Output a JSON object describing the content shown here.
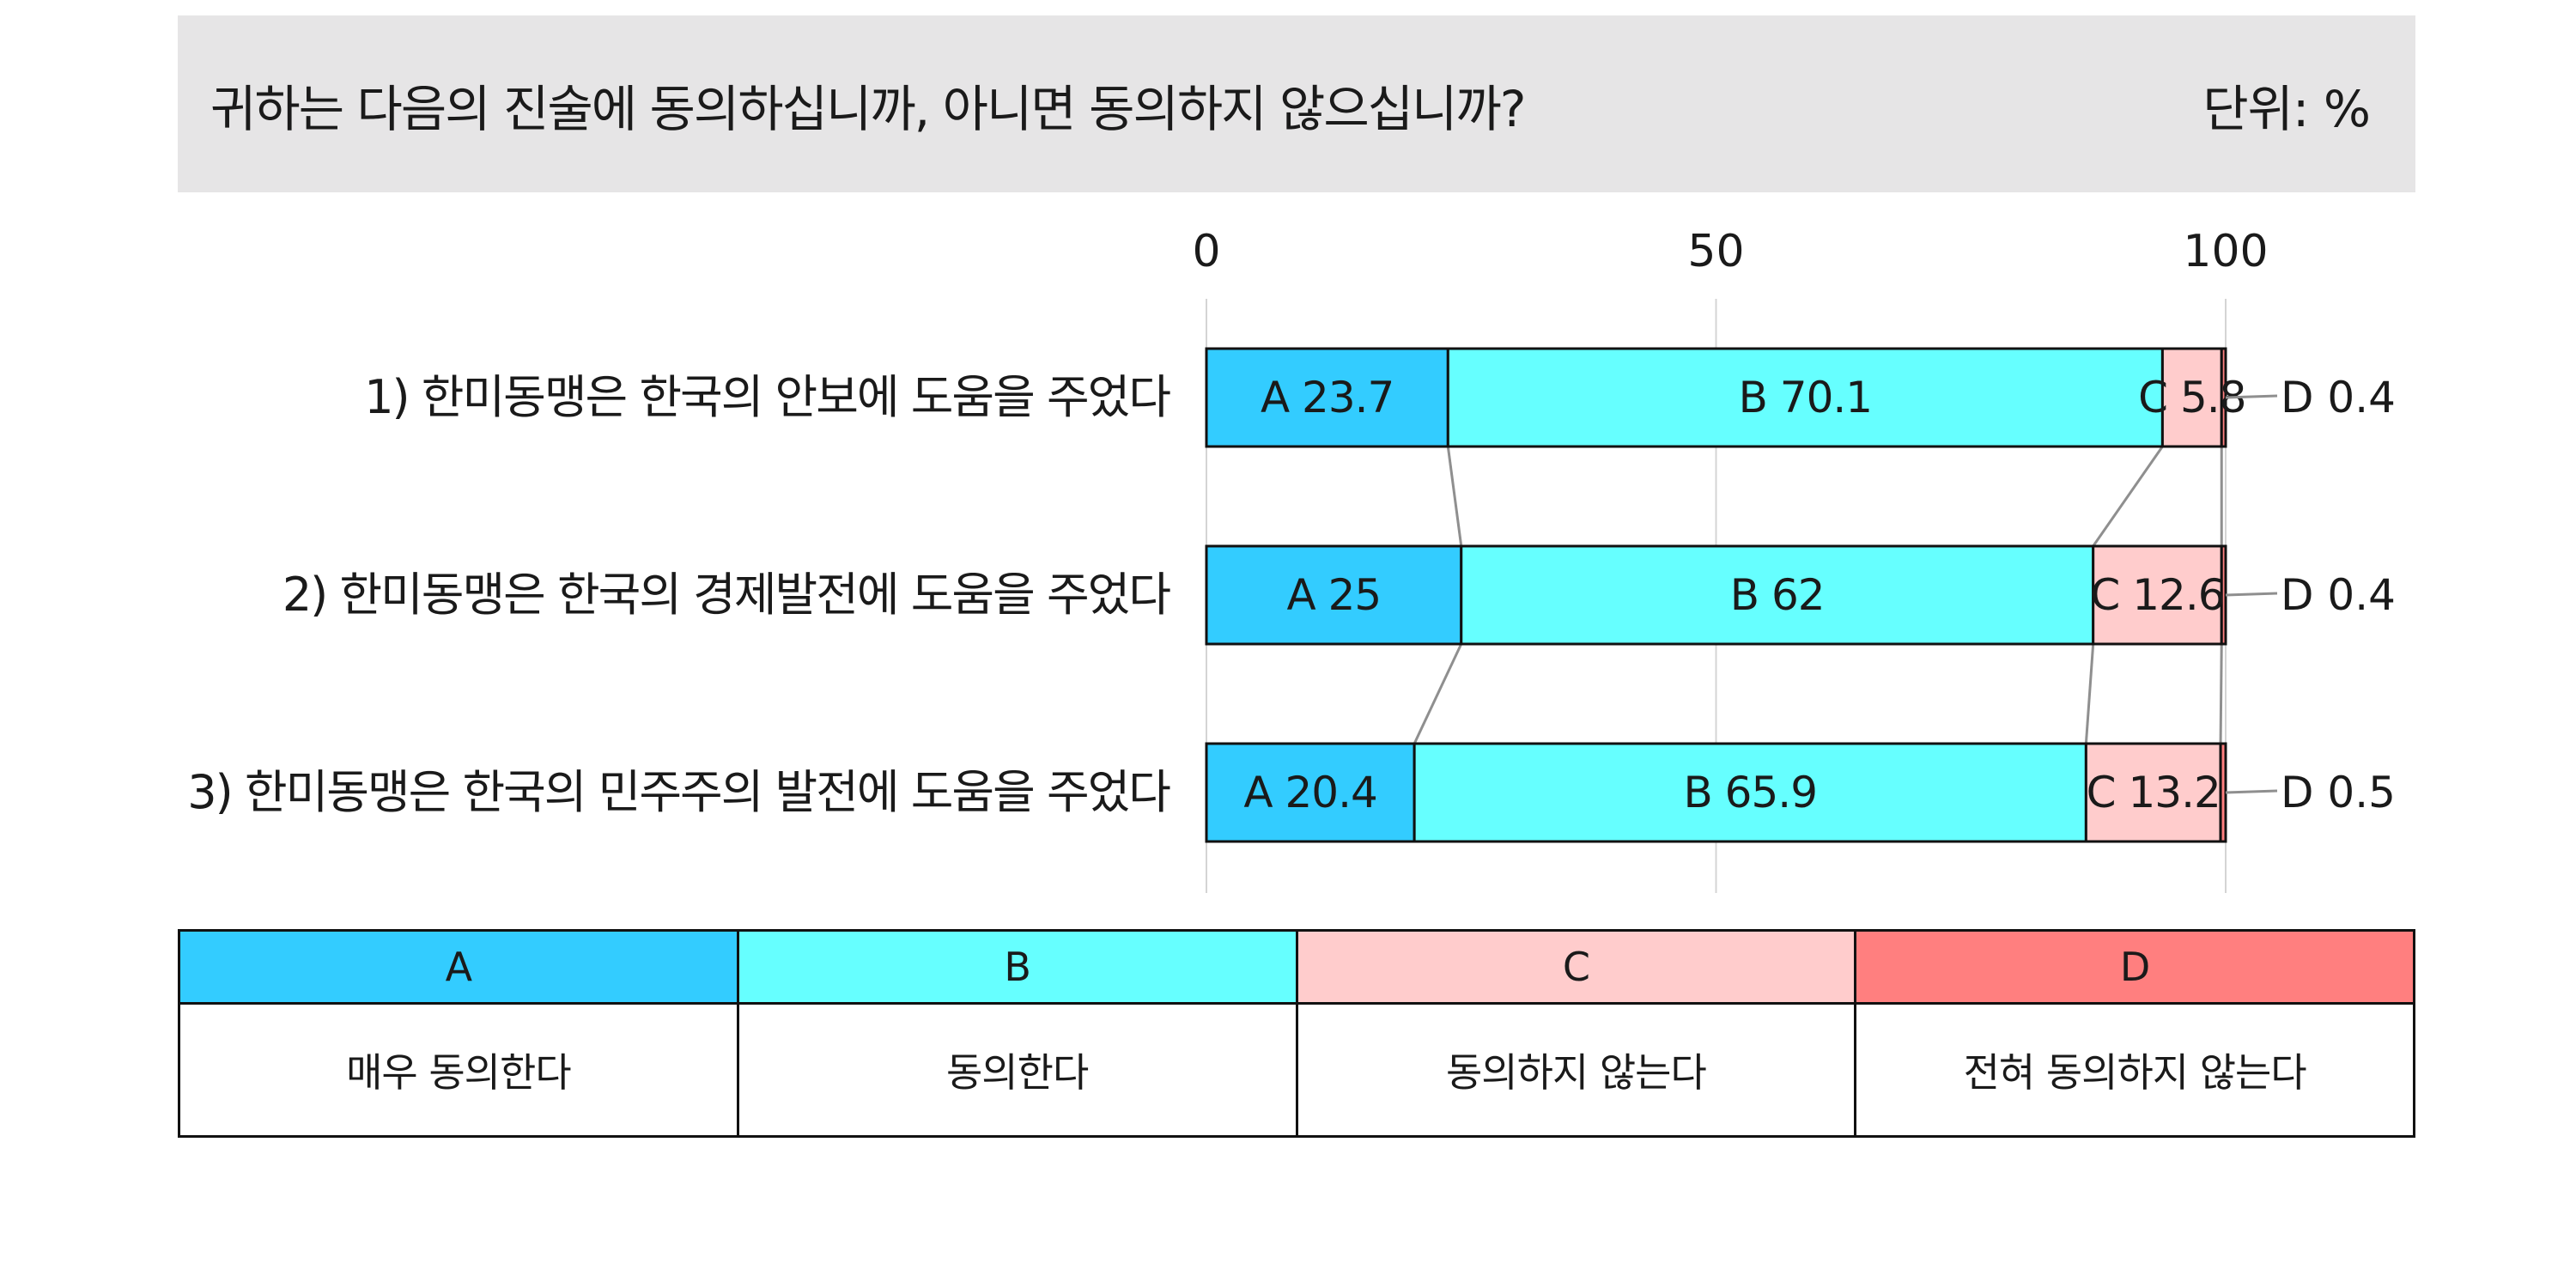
{
  "header": {
    "question": "귀하는 다음의 진술에 동의하십니까, 아니면 동의하지 않으십니까?",
    "unit": "단위: %"
  },
  "chart_data": {
    "type": "bar",
    "stacked": true,
    "orientation": "horizontal",
    "xlim": [
      0,
      100
    ],
    "x_ticks": [
      "0",
      "50",
      "100"
    ],
    "grid": true,
    "categories": [
      "1) 한미동맹은 한국의 안보에 도움을 주었다",
      "2) 한미동맹은 한국의 경제발전에 도움을 주었다",
      "3) 한미동맹은 한국의 민주주의 발전에 도움을 주었다"
    ],
    "series": [
      {
        "name": "A",
        "color": "#33ccff",
        "values": [
          23.7,
          25,
          20.4
        ]
      },
      {
        "name": "B",
        "color": "#66ffff",
        "values": [
          70.1,
          62,
          65.9
        ]
      },
      {
        "name": "C",
        "color": "#ffcccc",
        "values": [
          5.8,
          12.6,
          13.2
        ]
      },
      {
        "name": "D",
        "color": "#ff7f7f",
        "values": [
          0.4,
          0.4,
          0.5
        ]
      }
    ],
    "data_labels": [
      [
        "A 23.7",
        "B 70.1",
        "C 5.8",
        "D 0.4"
      ],
      [
        "A 25",
        "B 62",
        "C 12.6",
        "D 0.4"
      ],
      [
        "A 20.4",
        "B 65.9",
        "C 13.2",
        "D 0.5"
      ]
    ]
  },
  "legend": {
    "items": [
      {
        "code": "A",
        "label": "매우 동의한다",
        "color": "#33ccff"
      },
      {
        "code": "B",
        "label": "동의한다",
        "color": "#66ffff"
      },
      {
        "code": "C",
        "label": "동의하지 않는다",
        "color": "#ffcccc"
      },
      {
        "code": "D",
        "label": "전혀 동의하지 않는다",
        "color": "#ff7f7f"
      }
    ]
  }
}
